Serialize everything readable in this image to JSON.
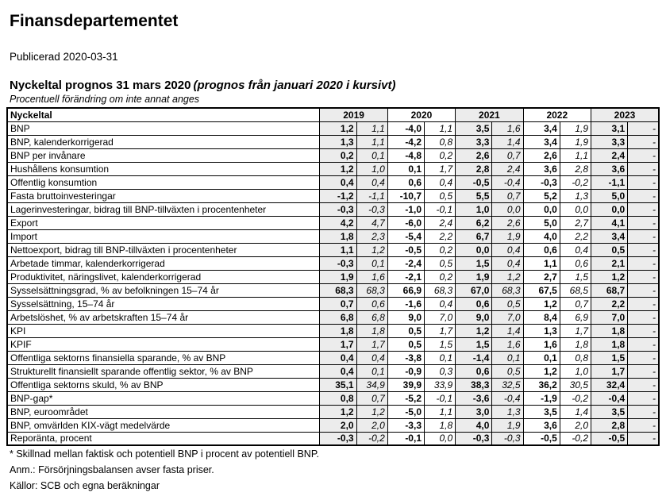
{
  "page": {
    "title": "Finansdepartementet",
    "published": "Publicerad 2020-03-31",
    "table_title": "Nyckeltal prognos 31 mars 2020",
    "table_title_note": "(prognos från januari 2020 i kursivt)",
    "table_subtitle": "Procentuell förändring om inte annat anges"
  },
  "colors": {
    "shaded_column": "#ececec",
    "border": "#000000",
    "background": "#ffffff"
  },
  "table": {
    "header_label": "Nyckeltal",
    "years": [
      "2019",
      "2020",
      "2021",
      "2022",
      "2023"
    ],
    "subcolumns_per_year": [
      "prognos 31 mars 2020 (fet)",
      "prognos januari 2020 (kursiv)"
    ],
    "rows": [
      {
        "label": "BNP",
        "values": [
          "1,2",
          "1,1",
          "-4,0",
          "1,1",
          "3,5",
          "1,6",
          "3,4",
          "1,9",
          "3,1",
          "-"
        ]
      },
      {
        "label": "BNP, kalenderkorrigerad",
        "values": [
          "1,3",
          "1,1",
          "-4,2",
          "0,8",
          "3,3",
          "1,4",
          "3,4",
          "1,9",
          "3,3",
          "-"
        ]
      },
      {
        "label": "BNP per invånare",
        "values": [
          "0,2",
          "0,1",
          "-4,8",
          "0,2",
          "2,6",
          "0,7",
          "2,6",
          "1,1",
          "2,4",
          "-"
        ]
      },
      {
        "label": "Hushållens konsumtion",
        "values": [
          "1,2",
          "1,0",
          "0,1",
          "1,7",
          "2,8",
          "2,4",
          "3,6",
          "2,8",
          "3,6",
          "-"
        ]
      },
      {
        "label": "Offentlig konsumtion",
        "values": [
          "0,4",
          "0,4",
          "0,6",
          "0,4",
          "-0,5",
          "-0,4",
          "-0,3",
          "-0,2",
          "-1,1",
          "-"
        ]
      },
      {
        "label": "Fasta bruttoinvesteringar",
        "values": [
          "-1,2",
          "-1,1",
          "-10,7",
          "0,5",
          "5,5",
          "0,7",
          "5,2",
          "1,3",
          "5,0",
          "-"
        ]
      },
      {
        "label": "Lagerinvesteringar, bidrag till BNP-tillväxten i procentenheter",
        "values": [
          "-0,3",
          "-0,3",
          "-1,0",
          "-0,1",
          "1,0",
          "0,0",
          "0,0",
          "0,0",
          "0,0",
          "-"
        ]
      },
      {
        "label": "Export",
        "values": [
          "4,2",
          "4,7",
          "-6,0",
          "2,4",
          "6,2",
          "2,6",
          "5,0",
          "2,7",
          "4,1",
          "-"
        ]
      },
      {
        "label": "Import",
        "values": [
          "1,8",
          "2,3",
          "-5,4",
          "2,2",
          "6,7",
          "1,9",
          "4,0",
          "2,2",
          "3,4",
          "-"
        ]
      },
      {
        "label": "Nettoexport, bidrag till BNP-tillväxten i procentenheter",
        "values": [
          "1,1",
          "1,2",
          "-0,5",
          "0,2",
          "0,0",
          "0,4",
          "0,6",
          "0,4",
          "0,5",
          "-"
        ]
      },
      {
        "label": "Arbetade timmar, kalenderkorrigerad",
        "values": [
          "-0,3",
          "0,1",
          "-2,4",
          "0,5",
          "1,5",
          "0,4",
          "1,1",
          "0,6",
          "2,1",
          "-"
        ]
      },
      {
        "label": "Produktivitet, näringslivet, kalenderkorrigerad",
        "values": [
          "1,9",
          "1,6",
          "-2,1",
          "0,2",
          "1,9",
          "1,2",
          "2,7",
          "1,5",
          "1,2",
          "-"
        ]
      },
      {
        "label": "Sysselsättningsgrad, % av befolkningen 15–74 år",
        "values": [
          "68,3",
          "68,3",
          "66,9",
          "68,3",
          "67,0",
          "68,3",
          "67,5",
          "68,5",
          "68,7",
          "-"
        ]
      },
      {
        "label": "Sysselsättning, 15–74 år",
        "values": [
          "0,7",
          "0,6",
          "-1,6",
          "0,4",
          "0,6",
          "0,5",
          "1,2",
          "0,7",
          "2,2",
          "-"
        ]
      },
      {
        "label": "Arbetslöshet, % av arbetskraften 15–74 år",
        "values": [
          "6,8",
          "6,8",
          "9,0",
          "7,0",
          "9,0",
          "7,0",
          "8,4",
          "6,9",
          "7,0",
          "-"
        ]
      },
      {
        "label": "KPI",
        "values": [
          "1,8",
          "1,8",
          "0,5",
          "1,7",
          "1,2",
          "1,4",
          "1,3",
          "1,7",
          "1,8",
          "-"
        ]
      },
      {
        "label": "KPIF",
        "values": [
          "1,7",
          "1,7",
          "0,5",
          "1,5",
          "1,5",
          "1,6",
          "1,6",
          "1,8",
          "1,8",
          "-"
        ]
      },
      {
        "label": "Offentliga sektorns finansiella sparande, % av BNP",
        "values": [
          "0,4",
          "0,4",
          "-3,8",
          "0,1",
          "-1,4",
          "0,1",
          "0,1",
          "0,8",
          "1,5",
          "-"
        ]
      },
      {
        "label": "Strukturellt finansiellt sparande offentlig sektor, % av BNP",
        "values": [
          "0,4",
          "0,1",
          "-0,9",
          "0,3",
          "0,6",
          "0,5",
          "1,2",
          "1,0",
          "1,7",
          "-"
        ]
      },
      {
        "label": "Offentliga sektorns skuld, % av BNP",
        "values": [
          "35,1",
          "34,9",
          "39,9",
          "33,9",
          "38,3",
          "32,5",
          "36,2",
          "30,5",
          "32,4",
          "-"
        ]
      },
      {
        "label": "BNP-gap*",
        "values": [
          "0,8",
          "0,7",
          "-5,2",
          "-0,1",
          "-3,6",
          "-0,4",
          "-1,9",
          "-0,2",
          "-0,4",
          "-"
        ]
      },
      {
        "label": "BNP, euroområdet",
        "values": [
          "1,2",
          "1,2",
          "-5,0",
          "1,1",
          "3,0",
          "1,3",
          "3,5",
          "1,4",
          "3,5",
          "-"
        ]
      },
      {
        "label": "BNP, omvärlden KIX-vägt medelvärde",
        "values": [
          "2,0",
          "2,0",
          "-3,3",
          "1,8",
          "4,0",
          "1,9",
          "3,6",
          "2,0",
          "2,8",
          "-"
        ]
      },
      {
        "label": "Reporänta, procent",
        "values": [
          "-0,3",
          "-0,2",
          "-0,1",
          "0,0",
          "-0,3",
          "-0,3",
          "-0,5",
          "-0,2",
          "-0,5",
          "-"
        ]
      }
    ]
  },
  "footnotes": [
    "* Skillnad mellan faktisk och potentiell BNP i procent av potentiell BNP.",
    "Anm.: Försörjningsbalansen avser fasta priser.",
    "Källor: SCB och egna beräkningar"
  ]
}
